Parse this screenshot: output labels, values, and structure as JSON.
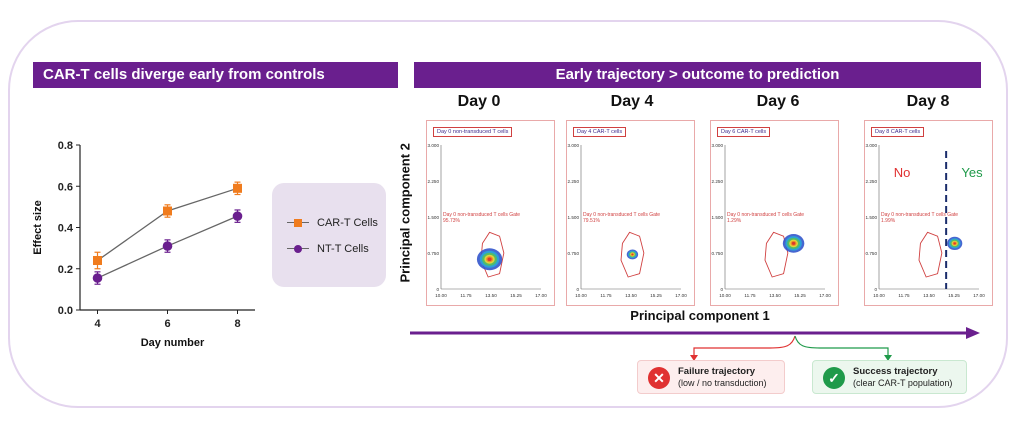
{
  "left_panel": {
    "title": "CAR-T cells diverge early from controls"
  },
  "right_panel": {
    "title": "Early trajectory >  outcome to prediction"
  },
  "chart_data": [
    {
      "type": "line",
      "x": [
        4,
        6,
        8
      ],
      "series": [
        {
          "name": "CAR-T Cells",
          "values": [
            0.24,
            0.48,
            0.59
          ],
          "errors": [
            0.04,
            0.03,
            0.03
          ],
          "color": "#f07c1e",
          "marker": "square"
        },
        {
          "name": "NT-T Cells",
          "values": [
            0.155,
            0.31,
            0.455
          ],
          "errors": [
            0.03,
            0.03,
            0.03
          ],
          "color": "#6a1f8e",
          "marker": "circle"
        }
      ],
      "xlabel": "Day number",
      "ylabel": "Effect size",
      "xticks": [
        "4",
        "6",
        "8"
      ],
      "yticks": [
        "0.0",
        "0.2",
        "0.4",
        "0.6",
        "0.8"
      ],
      "ylim": [
        0,
        0.8
      ],
      "legend": "right"
    },
    {
      "type": "scatter",
      "xlabel": "Principal component 1",
      "ylabel": "Principal component 2",
      "xticks": [
        "10.00",
        "11.75",
        "13.50",
        "15.25",
        "17.00"
      ],
      "yticks": [
        "0",
        "0.750",
        "1.500",
        "2.250",
        "3.000"
      ],
      "xlim": [
        10,
        17
      ],
      "ylim": [
        0,
        3
      ],
      "panels": [
        {
          "day": "Day 0",
          "tag": "Day 0 non-transduced T cells",
          "gate": "Day 0 non-transduced T cells Gate",
          "pct": "95.73%",
          "cluster": [
            13.4,
            0.62
          ]
        },
        {
          "day": "Day 4",
          "tag": "Day 4 CAR-T cells",
          "gate": "Day 0 non-transduced T cells Gate",
          "pct": "79.51%",
          "cluster": [
            13.6,
            0.72
          ]
        },
        {
          "day": "Day 6",
          "tag": "Day 6 CAR-T cells",
          "gate": "Day 0 non-transduced T cells Gate",
          "pct": "1.29%",
          "cluster": [
            14.8,
            0.95
          ]
        },
        {
          "day": "Day 8",
          "tag": "Day 8 CAR-T cells",
          "gate": "Day 0 non-transduced T cells Gate",
          "pct": "1.99%",
          "cluster": [
            15.3,
            0.95
          ],
          "no_label": "No",
          "yes_label": "Yes",
          "divider_x": 14.7
        }
      ]
    }
  ],
  "outcomes": {
    "failure": {
      "title": "Failure trajectory",
      "subtitle": "(low / no transduction)",
      "color": "#e03131"
    },
    "success": {
      "title": "Success trajectory",
      "subtitle": "(clear CAR-T population)",
      "color": "#1f9a4a"
    }
  },
  "colors": {
    "banner": "#6a1f8e",
    "arrow": "#6a1f8e",
    "gate": "#d04040",
    "divider": "#1a2c6b"
  }
}
